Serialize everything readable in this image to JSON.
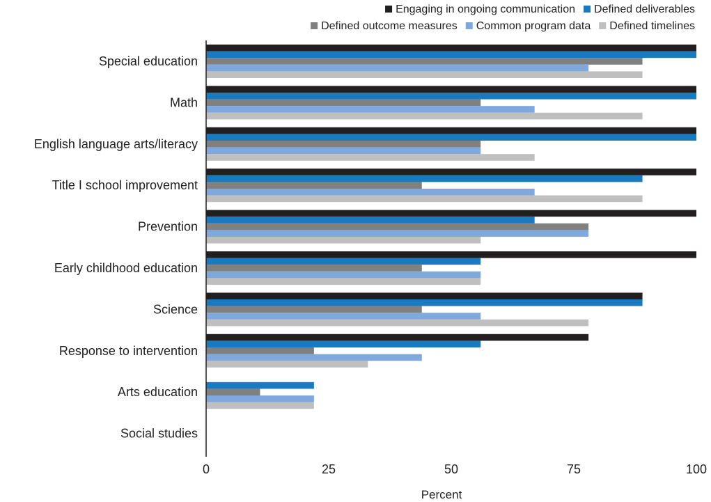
{
  "chart_data": {
    "type": "bar",
    "orientation": "horizontal",
    "title": "",
    "xlabel": "Percent",
    "ylabel": "",
    "xlim": [
      0,
      100
    ],
    "x_ticks": [
      0,
      25,
      50,
      75,
      100
    ],
    "grid": false,
    "legend_position": "top-right",
    "categories": [
      "Special education",
      "Math",
      "English language arts/literacy",
      "Title I school improvement",
      "Prevention",
      "Early childhood education",
      "Science",
      "Response to intervention",
      "Arts education",
      "Social studies"
    ],
    "series": [
      {
        "name": "Engaging in ongoing communication",
        "color": "#231f20",
        "values": [
          100,
          100,
          100,
          100,
          100,
          100,
          89,
          78,
          0,
          0
        ]
      },
      {
        "name": "Defined deliverables",
        "color": "#1a7abf",
        "values": [
          100,
          100,
          100,
          89,
          67,
          56,
          89,
          56,
          22,
          0
        ]
      },
      {
        "name": "Defined outcome measures",
        "color": "#808080",
        "values": [
          89,
          56,
          56,
          44,
          78,
          44,
          44,
          22,
          11,
          0
        ]
      },
      {
        "name": "Common program data",
        "color": "#7fa8dc",
        "values": [
          78,
          67,
          56,
          67,
          78,
          56,
          56,
          44,
          22,
          0
        ]
      },
      {
        "name": "Defined timelines",
        "color": "#bfbfbf",
        "values": [
          89,
          89,
          67,
          89,
          56,
          56,
          78,
          33,
          22,
          0
        ]
      }
    ]
  }
}
